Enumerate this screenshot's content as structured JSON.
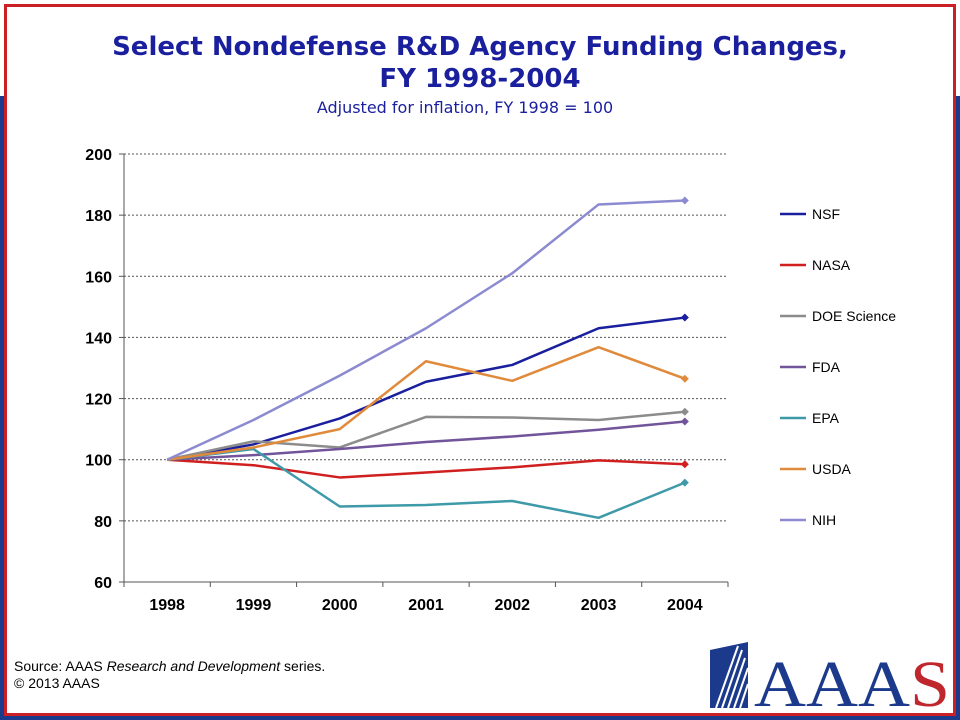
{
  "slide": {
    "title_line1": "Select Nondefense R&D Agency Funding Changes,",
    "title_line2": "FY 1998-2004",
    "subtitle": "Adjusted for inflation, FY 1998 = 100",
    "source_prefix": "Source: AAAS ",
    "source_italic": "Research and Development",
    "source_suffix": " series.",
    "copyright": "© 2013 AAAS",
    "logo_text": "AAAS",
    "colors": {
      "title": "#1a1f9e",
      "frame": "#cc1f25",
      "band": "#1c3a8c",
      "logo_red": "#c0272d",
      "logo_blue": "#1c3a8c"
    }
  },
  "chart_data": {
    "type": "line",
    "title": "Select Nondefense R&D Agency Funding Changes, FY 1998-2004",
    "subtitle": "Adjusted for inflation, FY 1998 = 100",
    "categories": [
      "1998",
      "1999",
      "2000",
      "2001",
      "2002",
      "2003",
      "2004"
    ],
    "ylim": [
      60,
      200
    ],
    "yticks": [
      60,
      80,
      100,
      120,
      140,
      160,
      180,
      200
    ],
    "grid": true,
    "legend_position": "right",
    "series": [
      {
        "name": "NSF",
        "color": "#1a1f9e",
        "values": [
          100,
          105,
          113.5,
          125.5,
          131,
          143,
          146.5
        ]
      },
      {
        "name": "NASA",
        "color": "#d11f1f",
        "values": [
          100,
          98.2,
          94.2,
          95.8,
          97.5,
          99.8,
          98.5
        ]
      },
      {
        "name": "DOE Science",
        "color": "#8c8c8c",
        "values": [
          100,
          106,
          104,
          114,
          113.8,
          113,
          115.7
        ]
      },
      {
        "name": "FDA",
        "color": "#71549a",
        "values": [
          100,
          101.5,
          103.5,
          105.8,
          107.6,
          109.8,
          112.5
        ]
      },
      {
        "name": "EPA",
        "color": "#3e9aa8",
        "values": [
          100,
          103.5,
          84.7,
          85.2,
          86.5,
          81,
          92.5
        ]
      },
      {
        "name": "USDA",
        "color": "#e08a3c",
        "values": [
          100,
          104,
          110,
          132.2,
          125.8,
          136.8,
          126.5
        ]
      },
      {
        "name": "NIH",
        "color": "#8c8ad0",
        "values": [
          100,
          113,
          127.5,
          143,
          161,
          183.5,
          184.8
        ]
      }
    ]
  }
}
